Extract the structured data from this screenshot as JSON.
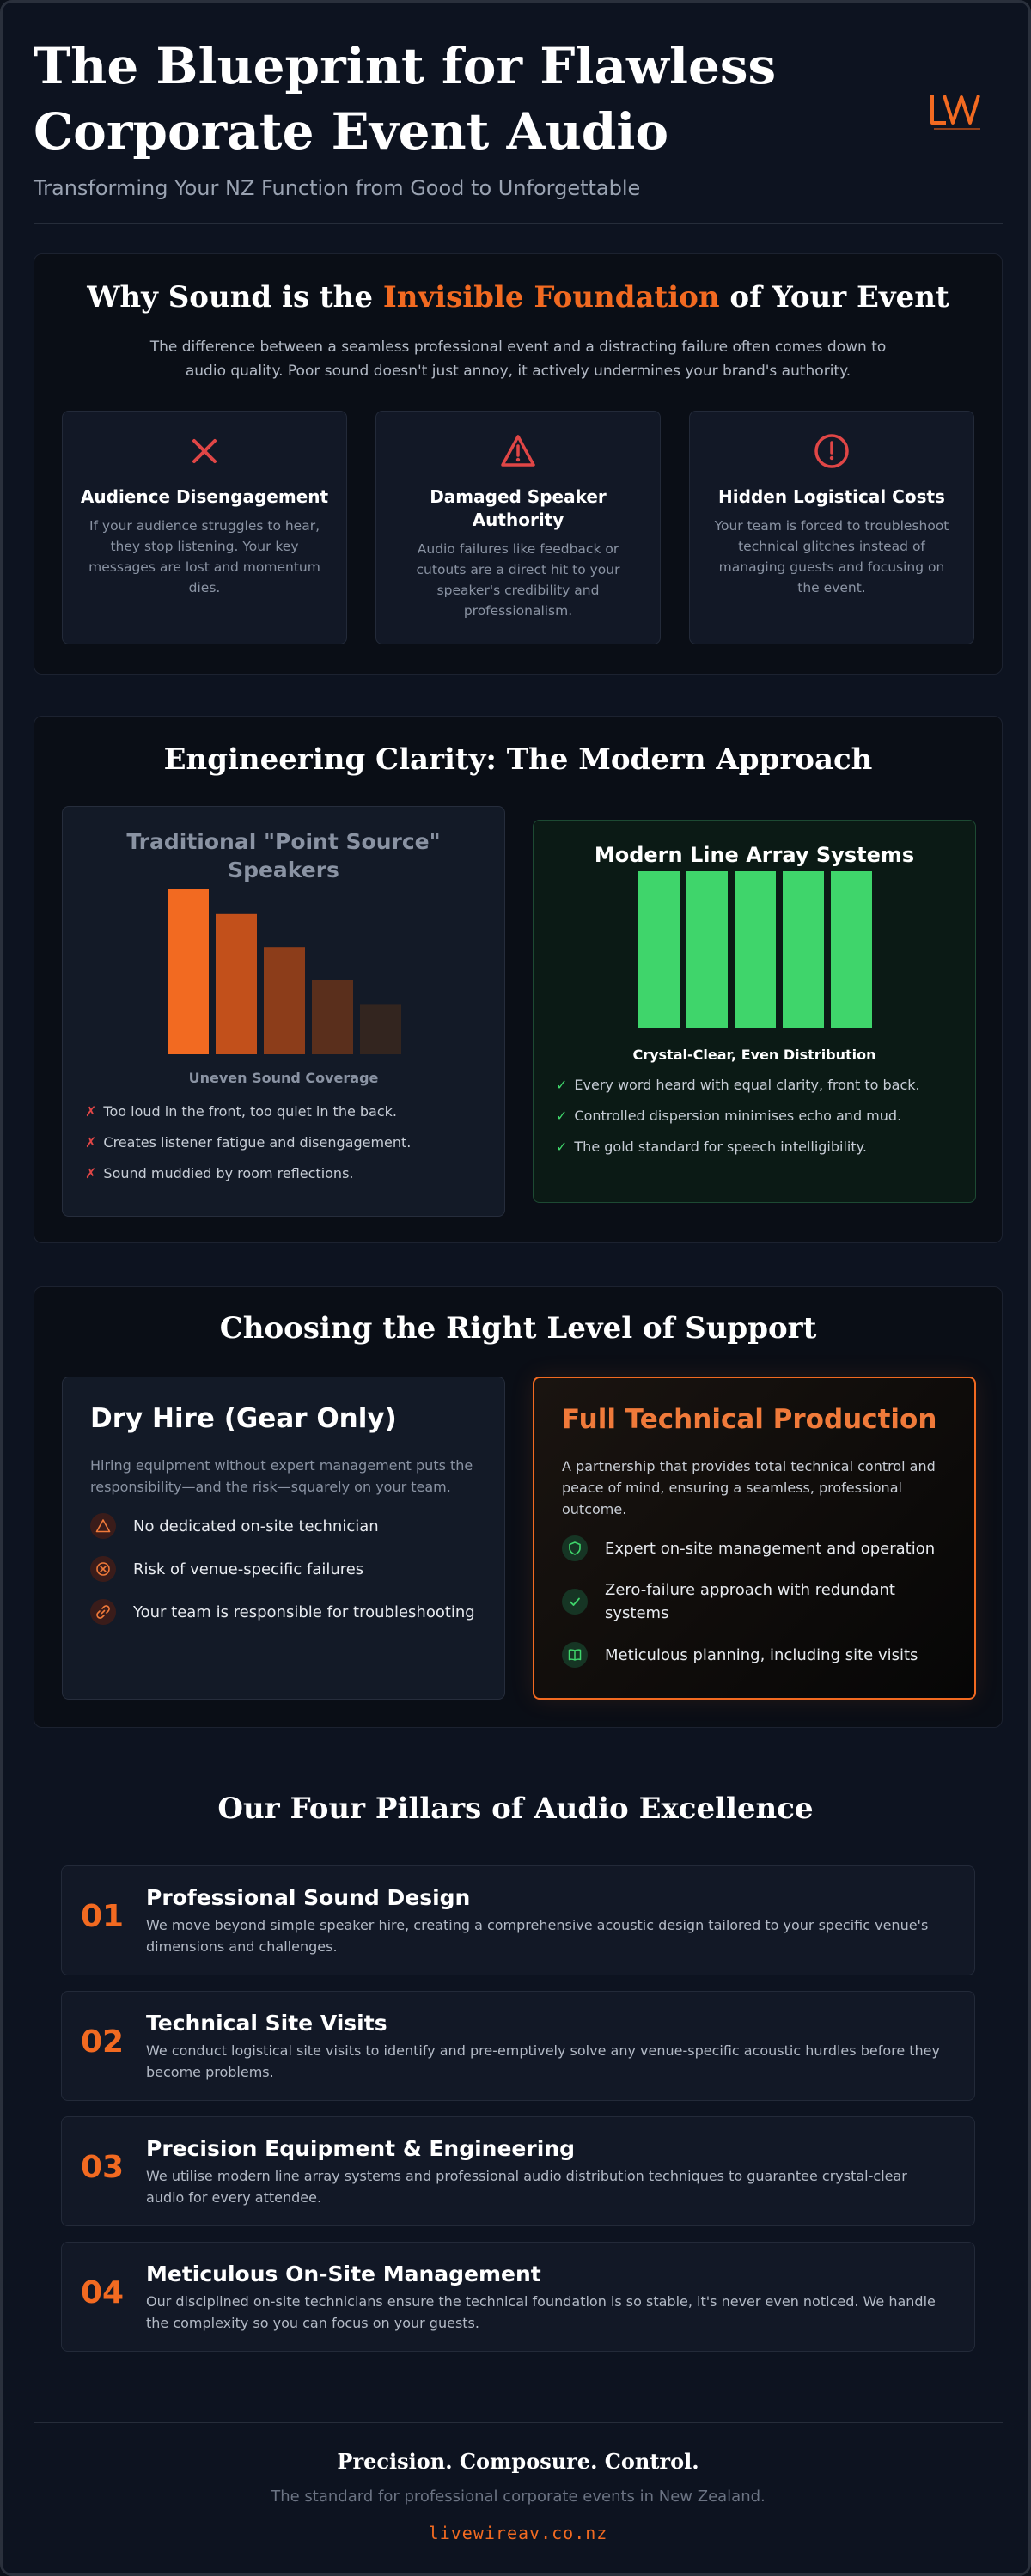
{
  "colors": {
    "accent": "#f26a21",
    "danger": "#e04646",
    "success": "#3fd56b",
    "background": "#0d1320"
  },
  "header": {
    "title": "The Blueprint for Flawless Corporate Event Audio",
    "subtitle": "Transforming Your NZ Function from Good to Unforgettable",
    "logo_icon": "lwav-logo"
  },
  "why": {
    "title_before": "Why Sound is the ",
    "title_accent": "Invisible Foundation",
    "title_after": " of Your Event",
    "intro": "The difference between a seamless professional event and a distracting failure often comes down to audio quality. Poor sound doesn't just annoy, it actively undermines your brand's authority.",
    "cards": [
      {
        "icon": "x-icon",
        "title": "Audience Disengagement",
        "text": "If your audience struggles to hear, they stop listening. Your key messages are lost and momentum dies."
      },
      {
        "icon": "warning-icon",
        "title": "Damaged Speaker Authority",
        "text": "Audio failures like feedback or cutouts are a direct hit to your speaker's credibility and professionalism."
      },
      {
        "icon": "alert-circle-icon",
        "title": "Hidden Logistical Costs",
        "text": "Your team is forced to troubleshoot technical glitches instead of managing guests and focusing on the event."
      }
    ]
  },
  "engineering": {
    "title": "Engineering Clarity: The Modern Approach",
    "traditional": {
      "title": "Traditional \"Point Source\" Speakers",
      "caption": "Uneven Sound Coverage",
      "points": [
        "Too loud in the front, too quiet in the back.",
        "Creates listener fatigue and disengagement.",
        "Sound muddied by room reflections."
      ]
    },
    "modern": {
      "title": "Modern Line Array Systems",
      "caption": "Crystal-Clear, Even Distribution",
      "points": [
        "Every word heard with equal clarity, front to back.",
        "Controlled dispersion minimises echo and mud.",
        "The gold standard for speech intelligibility."
      ]
    }
  },
  "chart_data": [
    {
      "type": "bar",
      "values": [
        1.0,
        0.85,
        0.65,
        0.45,
        0.3
      ],
      "colors": [
        "#f26a21",
        "#c2501b",
        "#8c3d1a",
        "#5a2f1c",
        "#33251f"
      ]
    },
    {
      "type": "bar",
      "values": [
        1.0,
        1.0,
        1.0,
        1.0,
        1.0
      ],
      "colors": [
        "#3fd56b",
        "#3fd56b",
        "#3fd56b",
        "#3fd56b",
        "#3fd56b"
      ]
    }
  ],
  "support": {
    "title": "Choosing the Right Level of Support",
    "dry": {
      "title": "Dry Hire (Gear Only)",
      "text": "Hiring equipment without expert management puts the responsibility—and the risk—squarely on your team.",
      "items": [
        {
          "icon": "warning-triangle-icon",
          "label": "No dedicated on-site technician"
        },
        {
          "icon": "x-circle-icon",
          "label": "Risk of venue-specific failures"
        },
        {
          "icon": "link-icon",
          "label": "Your team is responsible for troubleshooting"
        }
      ]
    },
    "full": {
      "title": "Full Technical Production",
      "text": "A partnership that provides total technical control and peace of mind, ensuring a seamless, professional outcome.",
      "items": [
        {
          "icon": "shield-icon",
          "label": "Expert on-site management and operation"
        },
        {
          "icon": "check-icon",
          "label": "Zero-failure approach with redundant systems"
        },
        {
          "icon": "book-icon",
          "label": "Meticulous planning, including site visits"
        }
      ]
    }
  },
  "pillars": {
    "title": "Our Four Pillars of Audio Excellence",
    "items": [
      {
        "num": "01",
        "title": "Professional Sound Design",
        "text": "We move beyond simple speaker hire, creating a comprehensive acoustic design tailored to your specific venue's dimensions and challenges."
      },
      {
        "num": "02",
        "title": "Technical Site Visits",
        "text": "We conduct logistical site visits to identify and pre-emptively solve any venue-specific acoustic hurdles before they become problems."
      },
      {
        "num": "03",
        "title": "Precision Equipment & Engineering",
        "text": "We utilise modern line array systems and professional audio distribution techniques to guarantee crystal-clear audio for every attendee."
      },
      {
        "num": "04",
        "title": "Meticulous On-Site Management",
        "text": "Our disciplined on-site technicians ensure the technical foundation is so stable, it's never even noticed. We handle the complexity so you can focus on your guests."
      }
    ]
  },
  "footer": {
    "tagline": "Precision. Composure. Control.",
    "standard": "The standard for professional corporate events in New Zealand.",
    "url": "livewireav.co.nz"
  }
}
